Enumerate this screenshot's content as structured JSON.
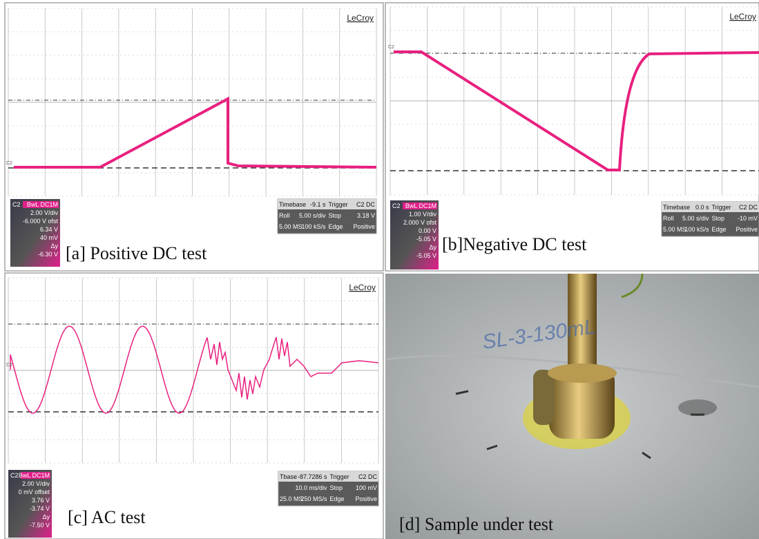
{
  "panels": [
    {
      "logo": "LeCroy",
      "channel": "C2",
      "left_box": [
        "C2",
        "BwL DC1M",
        "2.00 V/div",
        "-6.000 V ofst",
        "6.34 V",
        "40 mV",
        "Δy",
        "-6.30 V"
      ],
      "right_box": [
        [
          "Timebase",
          "-9.1 s",
          "Trigger",
          "C2 DC"
        ],
        [
          "Roll",
          "5.00 s/div",
          "Stop",
          "3.18 V"
        ],
        [
          "5.00 MS",
          "100 kS/s",
          "Edge",
          "Positive"
        ]
      ],
      "caption": "[a] Positive DC test"
    },
    {
      "logo": "LeCroy",
      "channel": "C2",
      "left_box": [
        "C2",
        "BwL DC1M",
        "1.00 V/div",
        "2.000 V ofst",
        "0.00 V",
        "-5.05 V",
        "Δy",
        "-5.05 V"
      ],
      "right_box": [
        [
          "Timebase",
          "0.0 s",
          "Trigger",
          "C2 DC"
        ],
        [
          "Roll",
          "5.00 s/div",
          "Stop",
          "-10 mV"
        ],
        [
          "5.00 MS",
          "100 kS/s",
          "Edge",
          "Positive"
        ]
      ],
      "caption": "[b]Negative DC test"
    },
    {
      "logo": "LeCroy",
      "channel": "C2",
      "left_box": [
        "C2",
        "BwL DC1M",
        "2.00 V/div",
        "0 mV offset",
        "3.76 V",
        "-3.74 V",
        "Δy",
        "-7.50 V"
      ],
      "right_box": [
        [
          "Tbase",
          "-87.7286 s",
          "Trigger",
          "C2 DC"
        ],
        [
          "10.0 ms/div",
          "Stop",
          "100 mV"
        ],
        [
          "25.0 MS",
          "250 MS/s",
          "Edge",
          "Positive"
        ]
      ],
      "caption": "[c] AC test"
    },
    {
      "note": "SL-3-130mL",
      "caption": "[d] Sample under test"
    }
  ]
}
